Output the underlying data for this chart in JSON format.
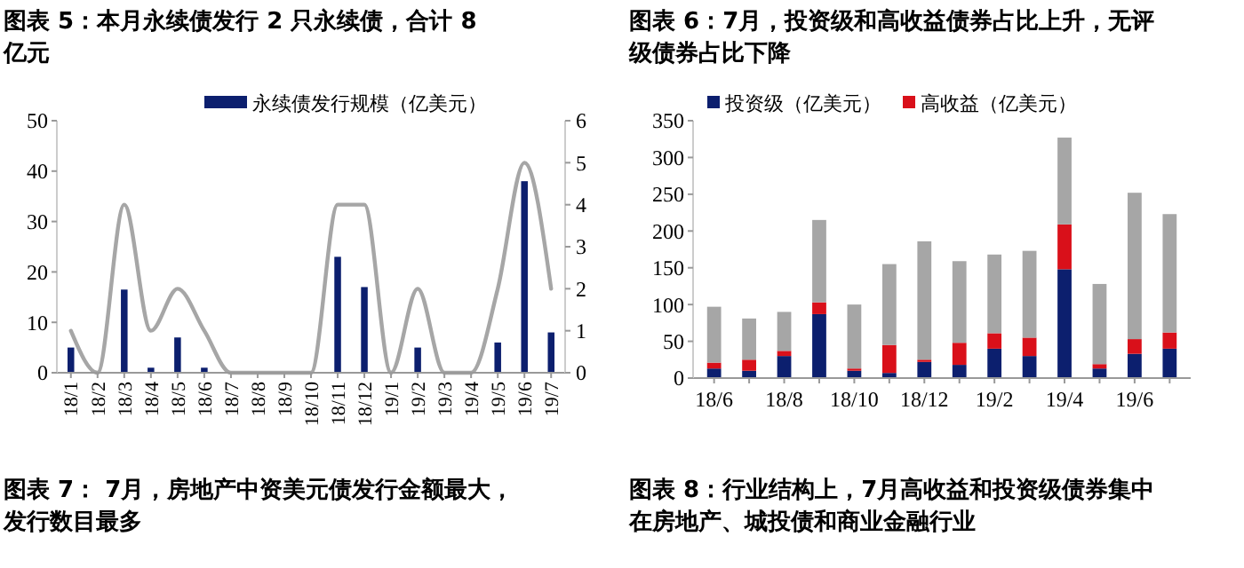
{
  "chart_data": [
    {
      "type": "bar",
      "title": "图表 5：本月永续债发行 2 只永续债，合计 8 亿元",
      "categories": [
        "18/1",
        "18/2",
        "18/3",
        "18/4",
        "18/5",
        "18/6",
        "18/7",
        "18/8",
        "18/9",
        "18/10",
        "18/11",
        "18/12",
        "19/1",
        "19/2",
        "19/3",
        "19/4",
        "19/5",
        "19/6",
        "19/7"
      ],
      "series": [
        {
          "name": "永续债发行规模（亿美元）",
          "color": "#0c1f6e",
          "values": [
            5,
            0,
            16.5,
            1,
            7,
            1,
            0,
            0,
            0,
            0,
            23,
            17,
            0,
            5,
            0,
            0,
            6,
            38,
            8
          ]
        },
        {
          "type": "line",
          "axis": "y2",
          "color": "#a6a6a6",
          "values": [
            1,
            0,
            4,
            1,
            2,
            1,
            0,
            0,
            0,
            0,
            4,
            4,
            0,
            2,
            0,
            0,
            2,
            5,
            2
          ]
        }
      ],
      "ylim": [
        0,
        50
      ],
      "yticks": [
        0,
        10,
        20,
        30,
        40,
        50
      ],
      "y2lim": [
        0,
        6
      ],
      "y2ticks": [
        0,
        1,
        2,
        3,
        4,
        5,
        6
      ],
      "legend": "top",
      "grid": false,
      "annotations": [
        "图表 7： 7月，房地产中资美元债发行金额最大，发行数目最多"
      ]
    },
    {
      "type": "bar",
      "title": "图表 6：7月，投资级和高收益债券占比上升，无评级债券占比下降",
      "categories": [
        "18/6",
        null,
        "18/8",
        null,
        "18/10",
        null,
        "18/12",
        null,
        "19/2",
        null,
        "19/4",
        null,
        "19/6",
        null
      ],
      "stacked": true,
      "series": [
        {
          "name": "投资级（亿美元）",
          "color": "#0c1f6e",
          "values": [
            13,
            10,
            30,
            87,
            10,
            7,
            22,
            18,
            40,
            30,
            148,
            13,
            33,
            40
          ]
        },
        {
          "name": "高收益（亿美元）",
          "color": "#d9101a",
          "values": [
            8,
            15,
            7,
            16,
            3,
            38,
            3,
            30,
            21,
            25,
            61,
            6,
            20,
            22
          ]
        },
        {
          "color": "#a6a6a6",
          "values": [
            76,
            56,
            53,
            112,
            87,
            110,
            161,
            111,
            107,
            118,
            118,
            109,
            199,
            161
          ]
        }
      ],
      "ylim": [
        0,
        350
      ],
      "yticks": [
        0,
        50,
        100,
        150,
        200,
        250,
        300,
        350
      ],
      "legend": "top left",
      "grid": false,
      "annotations": [
        "图表 8：行业结构上，7月高收益和投资级债券集中在房地产、城投债和商业金融行业"
      ]
    }
  ]
}
